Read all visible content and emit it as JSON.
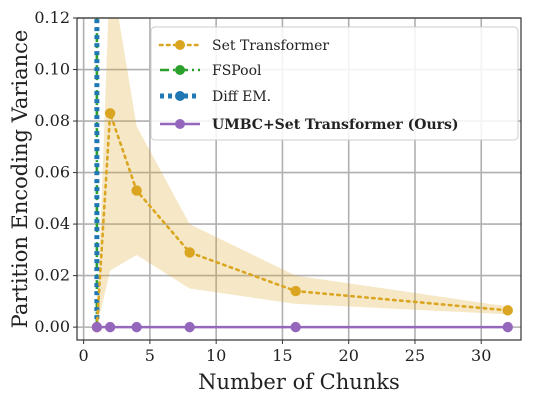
{
  "chart_data": {
    "type": "line",
    "xlabel": "Number of Chunks",
    "ylabel": "Partition Encoding Variance",
    "xlim": [
      -0.5,
      33
    ],
    "ylim": [
      -0.005,
      0.12
    ],
    "xticks": [
      0,
      5,
      10,
      15,
      20,
      25,
      30
    ],
    "yticks": [
      0.0,
      0.02,
      0.04,
      0.06,
      0.08,
      0.1,
      0.12
    ],
    "xtick_labels": [
      "0",
      "5",
      "10",
      "15",
      "20",
      "25",
      "30"
    ],
    "ytick_labels": [
      "0.00",
      "0.02",
      "0.04",
      "0.06",
      "0.08",
      "0.10",
      "0.12"
    ],
    "grid": true,
    "legend_position": "top-right",
    "series": [
      {
        "name": "Set Transformer",
        "color": "#DAA520",
        "line_style": "dotted",
        "x": [
          1,
          2,
          4,
          8,
          16,
          32
        ],
        "y": [
          0.0,
          0.083,
          0.053,
          0.029,
          0.014,
          0.0065
        ],
        "band_lower": [
          0.0,
          0.022,
          0.028,
          0.015,
          0.009,
          0.005
        ],
        "band_upper": [
          0.0,
          0.14,
          0.078,
          0.04,
          0.02,
          0.008
        ]
      },
      {
        "name": "FSPool",
        "color": "#2CA02C",
        "line_style": "dashdot",
        "x": [
          1,
          1
        ],
        "y": [
          0.0,
          0.12
        ]
      },
      {
        "name": "Diff EM.",
        "color": "#1F77B4",
        "line_style": "dotted-thick",
        "x": [
          1,
          1
        ],
        "y": [
          0.0,
          0.12
        ]
      },
      {
        "name": "UMBC+Set Transformer (Ours)",
        "color": "#9467BD",
        "line_style": "solid",
        "bold_legend": true,
        "x": [
          1,
          2,
          4,
          8,
          16,
          32
        ],
        "y": [
          0.0,
          0.0,
          0.0,
          0.0,
          0.0,
          0.0
        ]
      }
    ]
  }
}
